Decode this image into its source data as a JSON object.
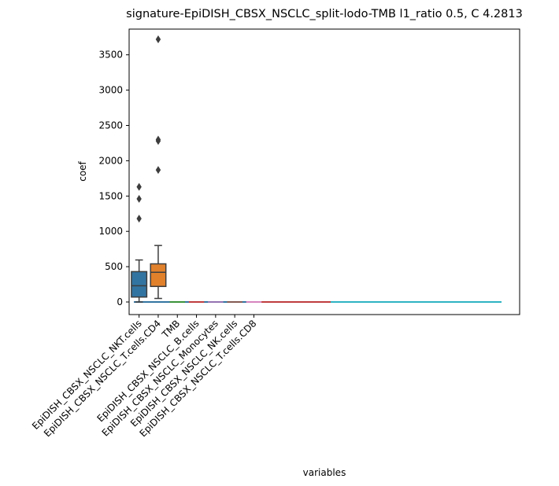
{
  "chart_data": {
    "type": "box",
    "title": "signature-EpiDISH_CBSX_NSCLC_split-lodo-TMB l1_ratio 0.5, C 4.2813",
    "xlabel": "variables",
    "ylabel": "coef",
    "ylim": [
      -180,
      3870
    ],
    "yticks": [
      0,
      500,
      1000,
      1500,
      2000,
      2500,
      3000,
      3500
    ],
    "ytick_labels": [
      "0",
      "500",
      "1000",
      "1500",
      "2000",
      "2500",
      "3000",
      "3500"
    ],
    "categories": [
      "EpiDISH_CBSX_NSCLC_NKT.cells",
      "EpiDISH_CBSX_NSCLC_T.cells.CD4",
      "TMB",
      "EpiDISH_CBSX_NSCLC_B.cells",
      "EpiDISH_CBSX_NSCLC_Monocytes",
      "EpiDISH_CBSX_NSCLC_NK.cells",
      "EpiDISH_CBSX_NSCLC_T.cells.CD8"
    ],
    "boxes": [
      {
        "category": "EpiDISH_CBSX_NSCLC_NKT.cells",
        "whisker_low": 0,
        "q1": 70,
        "median": 230,
        "q3": 430,
        "whisker_high": 595,
        "outliers": [
          1180,
          1460,
          1630
        ],
        "color": "#3274a1"
      },
      {
        "category": "EpiDISH_CBSX_NSCLC_T.cells.CD4",
        "whisker_low": 50,
        "q1": 220,
        "median": 420,
        "q3": 540,
        "whisker_high": 800,
        "outliers": [
          1870,
          2280,
          2300,
          3720
        ],
        "color": "#e1812c"
      },
      {
        "category": "TMB",
        "whisker_low": 0,
        "q1": 0,
        "median": 0,
        "q3": 0,
        "whisker_high": 0,
        "outliers": [],
        "color": "#3a923a"
      },
      {
        "category": "EpiDISH_CBSX_NSCLC_B.cells",
        "whisker_low": 0,
        "q1": 0,
        "median": 0,
        "q3": 0,
        "whisker_high": 0,
        "outliers": [],
        "color": "#c03d3e"
      },
      {
        "category": "EpiDISH_CBSX_NSCLC_Monocytes",
        "whisker_low": 0,
        "q1": 0,
        "median": 0,
        "q3": 0,
        "whisker_high": 0,
        "outliers": [],
        "color": "#9372b2"
      },
      {
        "category": "EpiDISH_CBSX_NSCLC_NK.cells",
        "whisker_low": 0,
        "q1": 0,
        "median": 0,
        "q3": 0,
        "whisker_high": 0,
        "outliers": [],
        "color": "#845b53"
      },
      {
        "category": "EpiDISH_CBSX_NSCLC_T.cells.CD8",
        "whisker_low": 0,
        "q1": 0,
        "median": 0,
        "q3": 0,
        "whisker_high": 0,
        "outliers": [],
        "color": "#d684bd"
      }
    ],
    "flat_zero_series": [
      {
        "color": "#7f7f7f"
      },
      {
        "color": "#a9aa35"
      },
      {
        "color": "#2eb4c3"
      },
      {
        "color": "#c03d3e"
      },
      {
        "color": "#3274a1"
      }
    ],
    "grid": false,
    "legend": "none"
  }
}
